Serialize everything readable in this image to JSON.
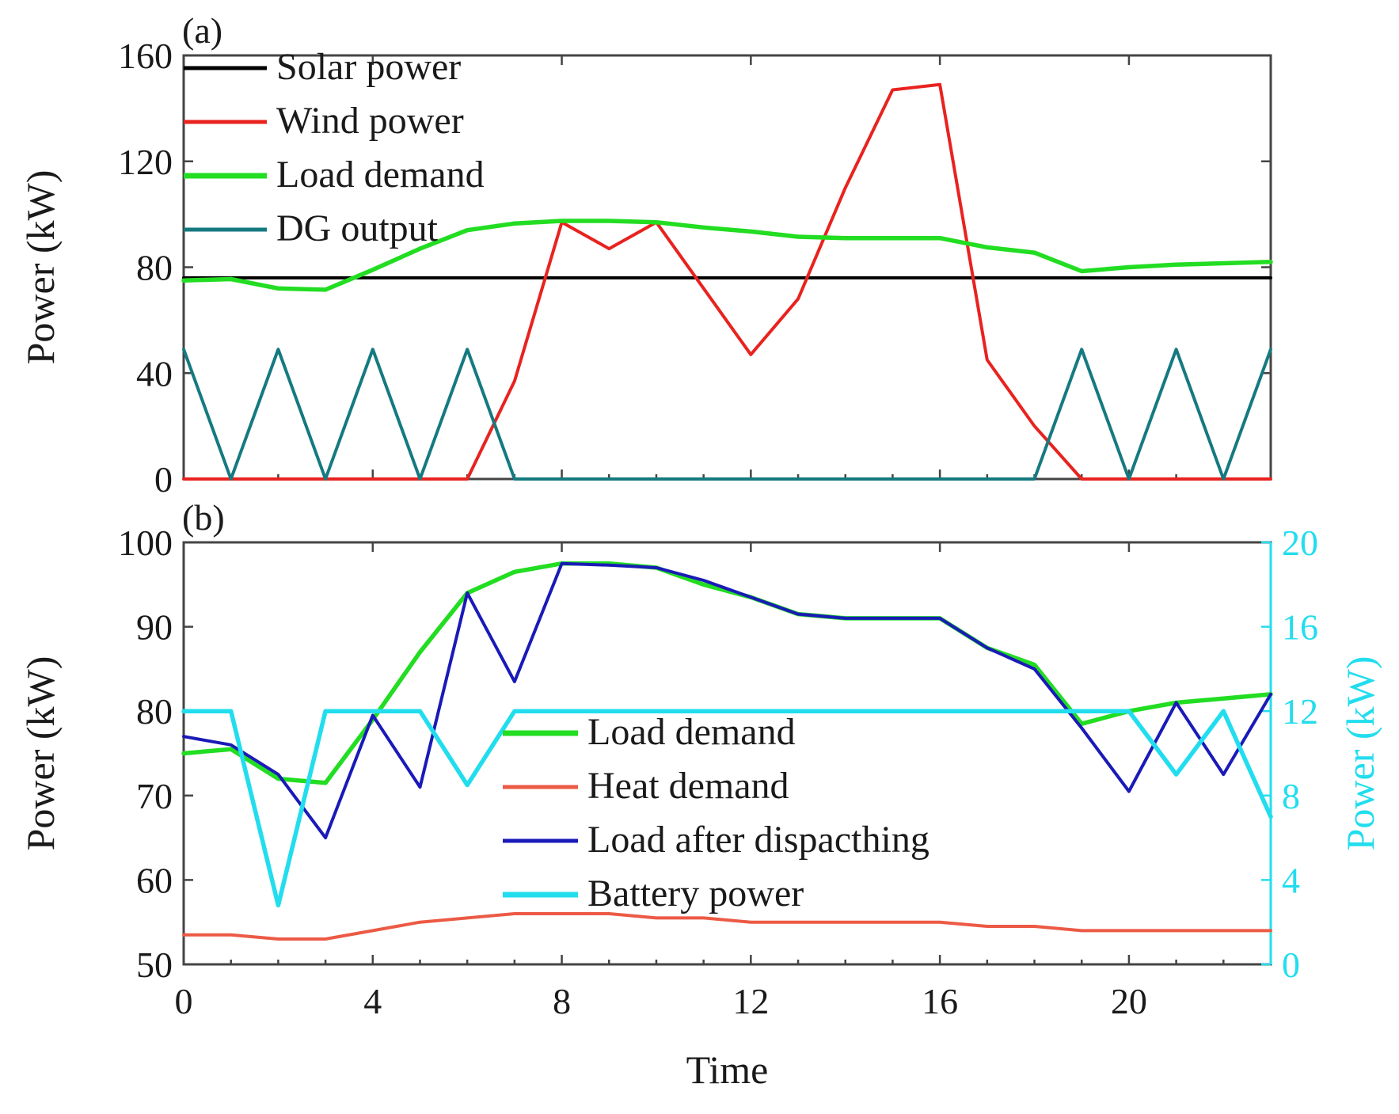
{
  "colors": {
    "solar": "#000000",
    "wind": "#e8231f",
    "load": "#22dd22",
    "dg": "#157a80",
    "heat": "#ec5a45",
    "load_after": "#1a1ab8",
    "battery": "#22ddee"
  },
  "chart_data": [
    {
      "type": "line",
      "panel_label": "(a)",
      "xlabel": "",
      "ylabel": "Power (kW)",
      "xlim": [
        0,
        23
      ],
      "ylim": [
        0,
        160
      ],
      "xticks": [
        0,
        4,
        8,
        12,
        16,
        20
      ],
      "yticks": [
        0,
        40,
        80,
        120,
        160
      ],
      "legend_position": "top-left",
      "x": [
        0,
        1,
        2,
        3,
        4,
        5,
        6,
        7,
        8,
        9,
        10,
        11,
        12,
        13,
        14,
        15,
        16,
        17,
        18,
        19,
        20,
        21,
        22,
        23
      ],
      "series": [
        {
          "name": "Solar power",
          "color_key": "solar",
          "values": [
            76,
            76,
            76,
            76,
            76,
            76,
            76,
            76,
            76,
            76,
            76,
            76,
            76,
            76,
            76,
            76,
            76,
            76,
            76,
            76,
            76,
            76,
            76,
            76
          ]
        },
        {
          "name": "Wind power",
          "color_key": "wind",
          "values": [
            0,
            0,
            0,
            0,
            0,
            0,
            0,
            37,
            97,
            87,
            97,
            72,
            47,
            68,
            110,
            147,
            149,
            45,
            20,
            0,
            0,
            0,
            0,
            0
          ]
        },
        {
          "name": "Load demand",
          "color_key": "load",
          "values": [
            75,
            75.5,
            72,
            71.5,
            79,
            87,
            94,
            96.5,
            97.5,
            97.5,
            97,
            95,
            93.5,
            91.5,
            91,
            91,
            91,
            87.5,
            85.5,
            78.5,
            80,
            81,
            81.5,
            82
          ]
        },
        {
          "name": "DG output",
          "color_key": "dg",
          "values": [
            49,
            0,
            49,
            0,
            49,
            0,
            49,
            0,
            0,
            0,
            0,
            0,
            0,
            0,
            0,
            0,
            0,
            0,
            0,
            49,
            0,
            49,
            0,
            49
          ]
        }
      ]
    },
    {
      "type": "line",
      "panel_label": "(b)",
      "xlabel": "Time",
      "ylabel": "Power (kW)",
      "y2label": "Power (kW)",
      "xlim": [
        0,
        23
      ],
      "ylim": [
        50,
        100
      ],
      "y2lim": [
        0,
        20
      ],
      "xticks": [
        0,
        4,
        8,
        12,
        16,
        20
      ],
      "yticks": [
        50,
        60,
        70,
        80,
        90,
        100
      ],
      "y2ticks": [
        0,
        4,
        8,
        12,
        16,
        20
      ],
      "legend_position": "center",
      "x": [
        0,
        1,
        2,
        3,
        4,
        5,
        6,
        7,
        8,
        9,
        10,
        11,
        12,
        13,
        14,
        15,
        16,
        17,
        18,
        19,
        20,
        21,
        22,
        23
      ],
      "series": [
        {
          "name": "Load demand",
          "color_key": "load",
          "axis": "left",
          "values": [
            75,
            75.5,
            72,
            71.5,
            79,
            87,
            94,
            96.5,
            97.5,
            97.5,
            97,
            95,
            93.5,
            91.5,
            91,
            91,
            91,
            87.5,
            85.5,
            78.5,
            80,
            81,
            81.5,
            82
          ]
        },
        {
          "name": "Heat demand",
          "color_key": "heat",
          "axis": "left",
          "values": [
            53.5,
            53.5,
            53,
            53,
            54,
            55,
            55.5,
            56,
            56,
            56,
            55.5,
            55.5,
            55,
            55,
            55,
            55,
            55,
            54.5,
            54.5,
            54,
            54,
            54,
            54,
            54
          ]
        },
        {
          "name": "Load after dispacthing",
          "color_key": "load_after",
          "axis": "left",
          "values": [
            77,
            76,
            72.5,
            65,
            79.5,
            71,
            94,
            83.5,
            97.5,
            97.3,
            97,
            95.5,
            93.5,
            91.5,
            91,
            91,
            91,
            87.5,
            85,
            78,
            70.5,
            81,
            72.5,
            82
          ]
        },
        {
          "name": "Battery power",
          "color_key": "battery",
          "axis": "right",
          "values": [
            12,
            12,
            2.8,
            12,
            12,
            12,
            8.5,
            12,
            12,
            12,
            12,
            12,
            12,
            12,
            12,
            12,
            12,
            12,
            12,
            12,
            12,
            9,
            12,
            7
          ]
        }
      ]
    }
  ]
}
